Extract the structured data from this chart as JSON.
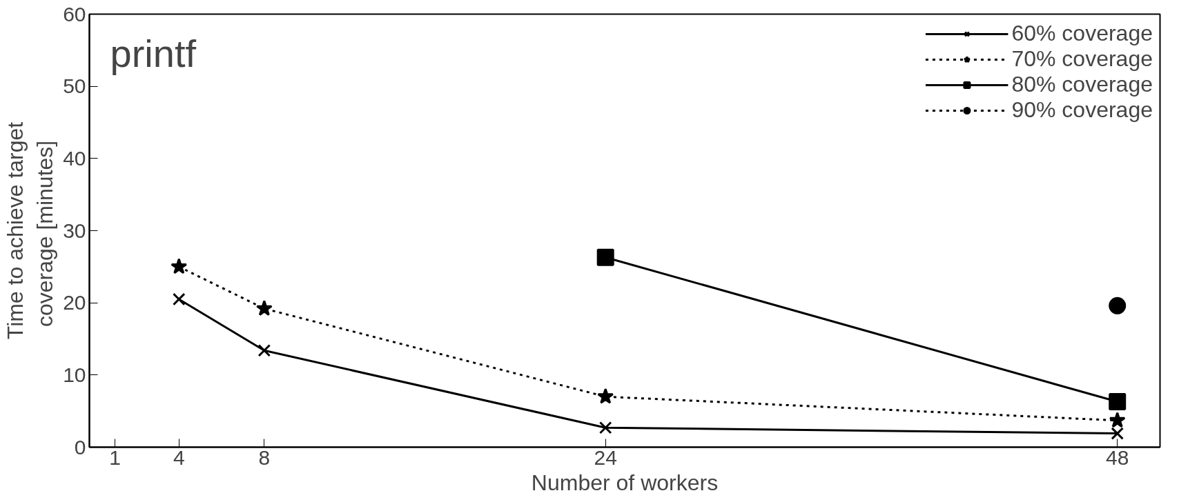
{
  "chart_data": {
    "type": "line",
    "xlabel": "Number of workers",
    "ylabel": "Time to achieve target\ncoverage  [minutes]",
    "annotations": [
      "printf"
    ],
    "xlim": [
      -0.2,
      50
    ],
    "xticks": [
      1,
      4,
      8,
      24,
      48
    ],
    "ylim": [
      0,
      60
    ],
    "yticks": [
      0,
      10,
      20,
      30,
      40,
      50,
      60
    ],
    "grid": false,
    "legend": "top right",
    "series": [
      {
        "name": "60% coverage",
        "color": "#000000",
        "marker": "cross",
        "line_style": "solid",
        "x": [
          4,
          8,
          24,
          48
        ],
        "values": [
          20.5,
          13.4,
          2.7,
          1.9
        ]
      },
      {
        "name": "70% coverage",
        "color": "#000000",
        "marker": "star",
        "line_style": "dotted",
        "x": [
          4,
          8,
          24,
          48
        ],
        "values": [
          25.0,
          19.2,
          7.0,
          3.7
        ]
      },
      {
        "name": "80% coverage",
        "color": "#000000",
        "marker": "square",
        "line_style": "solid",
        "x": [
          24,
          48
        ],
        "values": [
          26.3,
          6.3
        ]
      },
      {
        "name": "90% coverage",
        "color": "#000000",
        "marker": "circle",
        "line_style": "dotted",
        "x": [
          48
        ],
        "values": [
          19.6
        ]
      }
    ]
  }
}
